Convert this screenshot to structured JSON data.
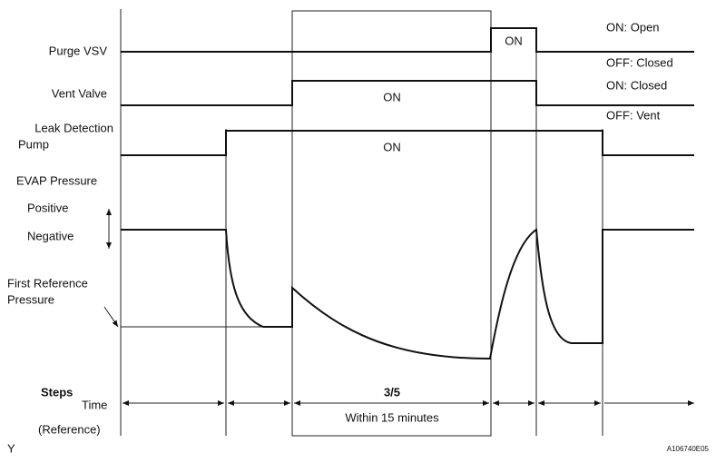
{
  "signals": [
    {
      "label": [
        "Purge VSV"
      ],
      "on_text": "ON",
      "state_on": "ON: Open",
      "state_off": "OFF: Closed"
    },
    {
      "label": [
        "Vent Valve"
      ],
      "on_text": "ON",
      "state_on": "ON: Closed",
      "state_off": "OFF: Vent"
    },
    {
      "label": [
        "Leak Detection",
        "Pump"
      ],
      "on_text": "ON"
    }
  ],
  "pressure": {
    "label": "EVAP Pressure",
    "positive": "Positive",
    "negative": "Negative",
    "reference": [
      "First Reference",
      "Pressure"
    ]
  },
  "steps": {
    "label": "Steps",
    "time": "Time",
    "reference": "(Reference)",
    "step": "3/5",
    "duration": "Within 15 minutes"
  },
  "footer": {
    "left": "Y",
    "right": "A106740E05"
  }
}
